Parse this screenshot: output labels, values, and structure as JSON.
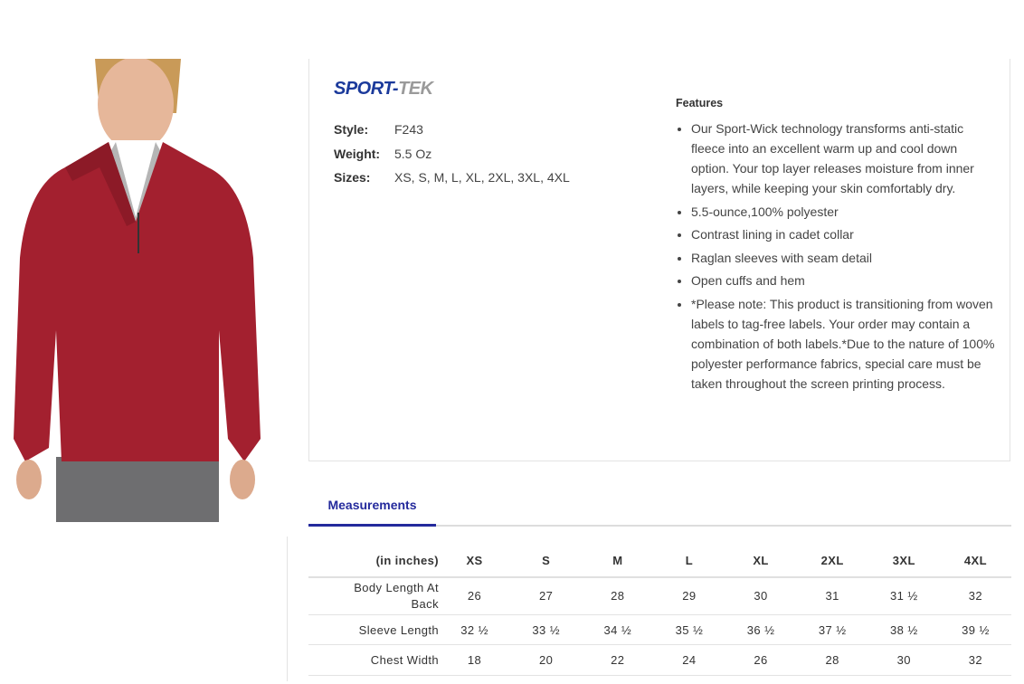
{
  "brand": {
    "logo_part1": "SPORT-",
    "logo_part2": "TEK",
    "logo_text": "SPORT-TEK"
  },
  "specs": [
    {
      "label": "Style:",
      "value": "F243"
    },
    {
      "label": "Weight:",
      "value": "5.5 Oz"
    },
    {
      "label": "Sizes:",
      "value": "XS, S, M, L, XL, 2XL, 3XL, 4XL"
    }
  ],
  "features": {
    "title": "Features",
    "items": [
      "Our Sport-Wick technology transforms anti-static fleece into an excellent warm up and cool down option. Your top layer releases moisture from inner layers, while keeping your skin comfortably dry.",
      "5.5-ounce,100% polyester",
      "Contrast lining in cadet collar",
      "Raglan sleeves with seam detail",
      "Open cuffs and hem",
      "*Please note: This product is transitioning from woven labels to tag-free labels. Your order may contain a combination of both labels.*Due to the nature of 100% polyester performance fabrics, special care must be taken throughout the screen printing process."
    ]
  },
  "tabs": {
    "measurements": "Measurements"
  },
  "colors": {
    "accent": "#242a9c",
    "garment": "#a3202f"
  },
  "measurements": {
    "unit_label": "(in inches)",
    "sizes": [
      "XS",
      "S",
      "M",
      "L",
      "XL",
      "2XL",
      "3XL",
      "4XL"
    ],
    "rows": [
      {
        "label": "Body Length At Back",
        "values": [
          "26",
          "27",
          "28",
          "29",
          "30",
          "31",
          "31 ½",
          "32"
        ]
      },
      {
        "label": "Sleeve Length",
        "values": [
          "32 ½",
          "33 ½",
          "34 ½",
          "35 ½",
          "36 ½",
          "37 ½",
          "38 ½",
          "39 ½"
        ]
      },
      {
        "label": "Chest Width",
        "values": [
          "18",
          "20",
          "22",
          "24",
          "26",
          "28",
          "30",
          "32"
        ]
      }
    ]
  }
}
